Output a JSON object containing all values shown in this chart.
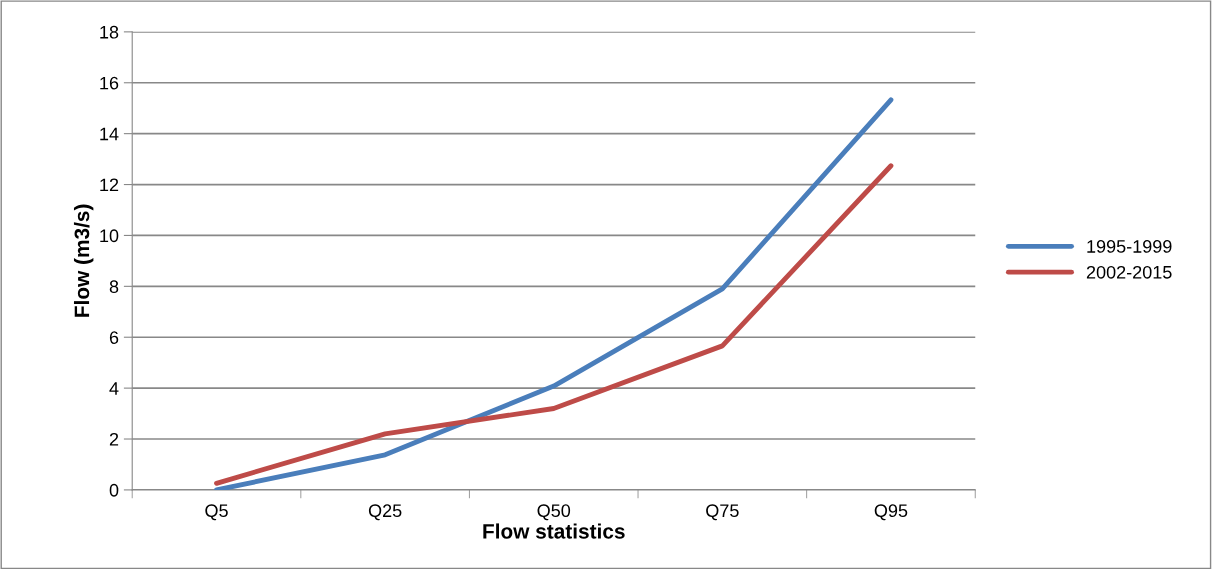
{
  "chart_data": {
    "type": "line",
    "xlabel": "Flow statistics",
    "ylabel": "Flow (m3/s)",
    "categories": [
      "Q5",
      "Q25",
      "Q50",
      "Q75",
      "Q95"
    ],
    "series": [
      {
        "name": "1995-1999",
        "color": "#4a7ebb",
        "values": [
          0,
          1.38,
          4.08,
          7.9,
          15.33
        ]
      },
      {
        "name": "2002-2015",
        "color": "#be4b48",
        "values": [
          0.26,
          2.2,
          3.2,
          5.66,
          12.74
        ]
      }
    ],
    "ylim": [
      0,
      18
    ],
    "yticks": [
      0,
      2,
      4,
      6,
      8,
      10,
      12,
      14,
      16,
      18
    ],
    "grid": "y",
    "legend": "right"
  }
}
